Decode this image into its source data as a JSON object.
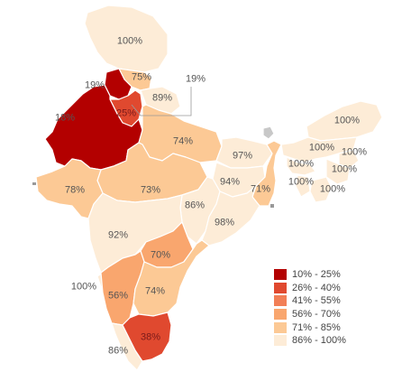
{
  "map": {
    "regions": [
      {
        "id": "jammu-kashmir",
        "value": "100%",
        "bin": 5
      },
      {
        "id": "himachal",
        "value": "75%",
        "bin": 4
      },
      {
        "id": "punjab",
        "value": "19%",
        "bin": 0
      },
      {
        "id": "uttarakhand",
        "value": "89%",
        "bin": 5
      },
      {
        "id": "chandigarh",
        "value": "19%",
        "bin": 0
      },
      {
        "id": "haryana",
        "value": "25%",
        "bin": 1
      },
      {
        "id": "rajasthan",
        "value": "18%",
        "bin": 0
      },
      {
        "id": "uttar-pradesh",
        "value": "74%",
        "bin": 4
      },
      {
        "id": "bihar",
        "value": "97%",
        "bin": 5
      },
      {
        "id": "gujarat",
        "value": "78%",
        "bin": 4
      },
      {
        "id": "madhya-pradesh",
        "value": "73%",
        "bin": 4
      },
      {
        "id": "jharkhand",
        "value": "94%",
        "bin": 5
      },
      {
        "id": "west-bengal",
        "value": "71%",
        "bin": 4
      },
      {
        "id": "chhattisgarh",
        "value": "86%",
        "bin": 5
      },
      {
        "id": "odisha",
        "value": "98%",
        "bin": 5
      },
      {
        "id": "maharashtra",
        "value": "92%",
        "bin": 5
      },
      {
        "id": "telangana",
        "value": "70%",
        "bin": 3
      },
      {
        "id": "goa",
        "value": "100%",
        "bin": 5
      },
      {
        "id": "karnataka",
        "value": "56%",
        "bin": 3
      },
      {
        "id": "andhra-pradesh",
        "value": "74%",
        "bin": 4
      },
      {
        "id": "tamil-nadu",
        "value": "38%",
        "bin": 1
      },
      {
        "id": "kerala",
        "value": "86%",
        "bin": 5
      },
      {
        "id": "arunachal",
        "value": "100%",
        "bin": 5
      },
      {
        "id": "assam",
        "value": "100%",
        "bin": 5
      },
      {
        "id": "nagaland",
        "value": "100%",
        "bin": 5
      },
      {
        "id": "meghalaya",
        "value": "100%",
        "bin": 5
      },
      {
        "id": "manipur",
        "value": "100%",
        "bin": 5
      },
      {
        "id": "tripura",
        "value": "100%",
        "bin": 5
      },
      {
        "id": "mizoram",
        "value": "100%",
        "bin": 5
      }
    ]
  },
  "legend": {
    "items": [
      {
        "label": "10% - 25%",
        "color": "#b30000"
      },
      {
        "label": "26% - 40%",
        "color": "#e0492f"
      },
      {
        "label": "41% - 55%",
        "color": "#f27f56"
      },
      {
        "label": "56% - 70%",
        "color": "#f9a66e"
      },
      {
        "label": "71% - 85%",
        "color": "#fcc995"
      },
      {
        "label": "86% - 100%",
        "color": "#fdecd7"
      }
    ]
  },
  "colors": {
    "sikkim": "#c8c8c8",
    "border": "#ffffff",
    "label_text": "#555555"
  }
}
